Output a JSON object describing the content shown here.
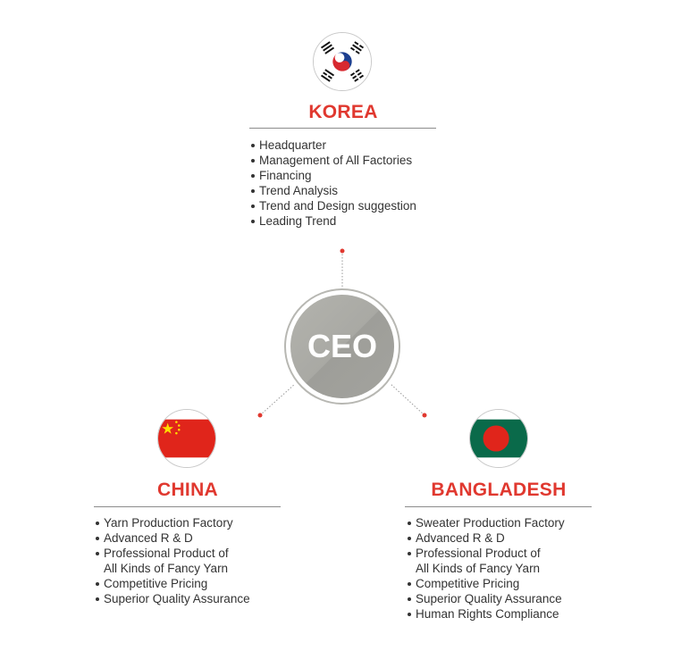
{
  "center": {
    "label": "CEO"
  },
  "korea": {
    "title": "KOREA",
    "flag": "south-korea-flag",
    "items": [
      "Headquarter",
      "Management of All Factories",
      "Financing",
      "Trend Analysis",
      "Trend and Design suggestion",
      "Leading Trend"
    ]
  },
  "china": {
    "title": "CHINA",
    "flag": "china-flag",
    "items": [
      "Yarn Production Factory",
      "Advanced R & D",
      "Professional Product of",
      "All Kinds of Fancy Yarn",
      "Competitive Pricing",
      "Superior Quality Assurance"
    ]
  },
  "bangladesh": {
    "title": "BANGLADESH",
    "flag": "bangladesh-flag",
    "items": [
      "Sweater Production Factory",
      "Advanced R & D",
      "Professional Product of",
      "All Kinds of Fancy Yarn",
      "Competitive Pricing",
      "Superior Quality Assurance",
      "Human Rights Compliance"
    ]
  },
  "colors": {
    "accent": "#e0382f",
    "ceo_circle": "#a9a9a4",
    "text": "#333333",
    "rule": "#8c8c8c"
  }
}
